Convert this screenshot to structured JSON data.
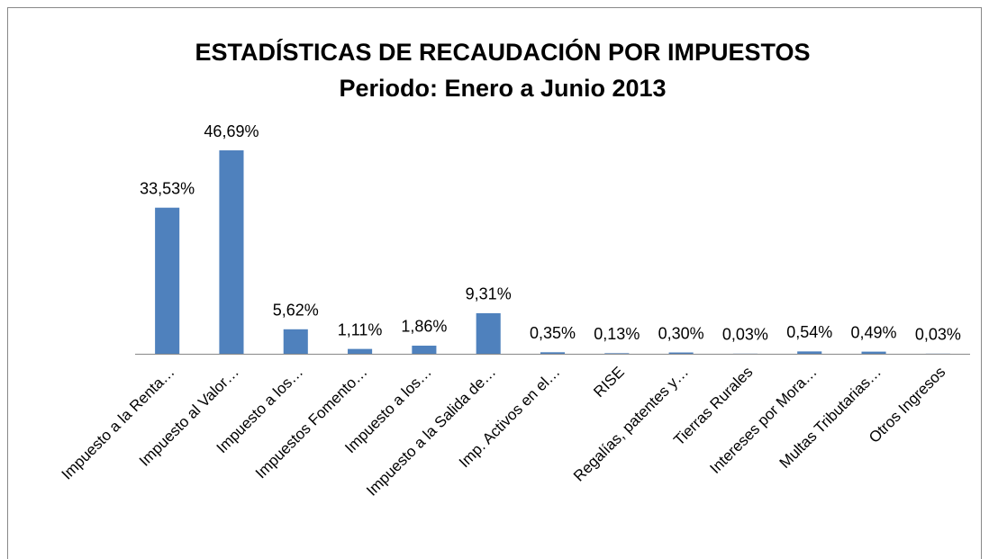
{
  "chart_data": {
    "type": "bar",
    "title": "ESTADÍSTICAS DE RECAUDACIÓN POR IMPUESTOS",
    "subtitle": "Periodo: Enero a Junio 2013",
    "categories": [
      "Impuesto a la Renta…",
      "Impuesto al Valor…",
      "Impuesto a los…",
      "Impuestos Fomento…",
      "Impuesto a los…",
      "Impuesto a la Salida de…",
      "Imp. Activos en el…",
      "RISE",
      "Regalías, patentes y…",
      "Tierras Rurales",
      "Intereses por Mora…",
      "Multas Tributarias…",
      "Otros Ingresos"
    ],
    "values": [
      33.53,
      46.69,
      5.62,
      1.11,
      1.86,
      9.31,
      0.35,
      0.13,
      0.3,
      0.03,
      0.54,
      0.49,
      0.03
    ],
    "value_labels": [
      "33,53%",
      "46,69%",
      "5,62%",
      "1,11%",
      "1,86%",
      "9,31%",
      "0,35%",
      "0,13%",
      "0,30%",
      "0,03%",
      "0,54%",
      "0,49%",
      "0,03%"
    ],
    "color": "#4f81bd",
    "ylim": [
      0,
      50
    ]
  }
}
